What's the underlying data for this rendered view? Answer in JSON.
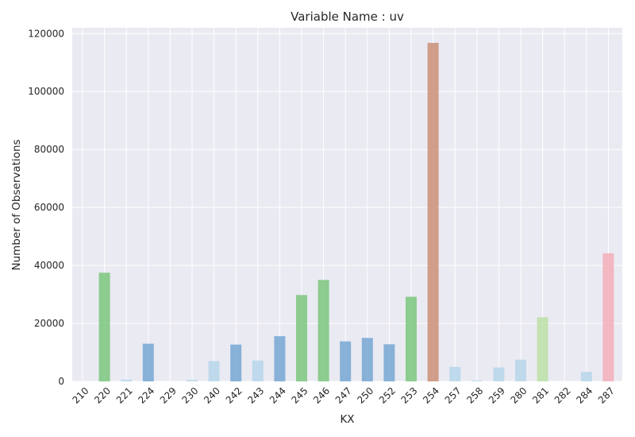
{
  "chart_data": {
    "type": "bar",
    "title": "Variable Name : uv",
    "xlabel": "KX",
    "ylabel": "Number of Observations",
    "ylim": [
      0,
      122000
    ],
    "yticks": [
      0,
      20000,
      40000,
      60000,
      80000,
      100000,
      120000
    ],
    "grid": true,
    "categories": [
      "210",
      "220",
      "221",
      "224",
      "229",
      "230",
      "240",
      "242",
      "243",
      "244",
      "245",
      "246",
      "247",
      "250",
      "252",
      "253",
      "254",
      "257",
      "258",
      "259",
      "280",
      "281",
      "282",
      "284",
      "287"
    ],
    "values": [
      0,
      37500,
      600,
      13000,
      0,
      500,
      7000,
      12700,
      7200,
      15600,
      29800,
      35000,
      13800,
      15000,
      12800,
      29200,
      116800,
      5000,
      300,
      4800,
      7500,
      22100,
      0,
      3300,
      44200
    ],
    "bar_colors": [
      "#74a9cf",
      "#74c476",
      "#b4d4ea",
      "#6fa3d1",
      "#74a9cf",
      "#b4d4ea",
      "#b4d4ea",
      "#6fa3d1",
      "#b4d4ea",
      "#6fa3d1",
      "#74c476",
      "#74c476",
      "#6fa3d1",
      "#6fa3d1",
      "#6fa3d1",
      "#74c476",
      "#c88a6e",
      "#b4d4ea",
      "#b4d4ea",
      "#b4d4ea",
      "#b4d4ea",
      "#b8e0a0",
      "#b4d4ea",
      "#b4d4ea",
      "#f4aab5"
    ]
  },
  "colors": {
    "plot_background": "#eaeaf2",
    "grid": "#ffffff",
    "text": "#262626"
  }
}
